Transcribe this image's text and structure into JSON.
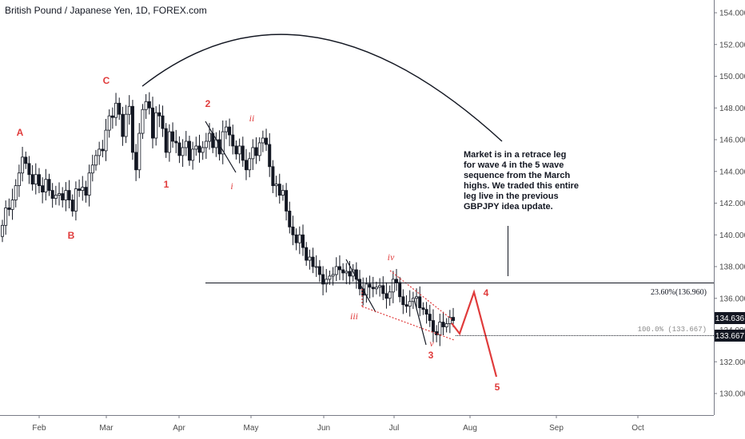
{
  "header": {
    "title": "British Pound / Japanese Yen, 1D, FOREX.com"
  },
  "colors": {
    "candles": "#131722",
    "wave": "#e03b3b",
    "grid": "#f0f3fa",
    "axis": "#787b86",
    "price_tag": "#131722"
  },
  "chart_data": {
    "type": "candlestick",
    "y_axis": {
      "ticks": [
        "154.000",
        "152.000",
        "150.000",
        "148.000",
        "146.000",
        "144.000",
        "142.000",
        "140.000",
        "138.000",
        "136.000",
        "134.000",
        "132.000",
        "130.000"
      ],
      "ylim": [
        128.5,
        154.8
      ]
    },
    "x_axis": {
      "ticks": [
        "Feb",
        "Mar",
        "Apr",
        "May",
        "Jun",
        "Jul",
        "Aug",
        "Sep",
        "Oct"
      ]
    },
    "price_tags": {
      "current": "134.636",
      "level": "133.667"
    },
    "fib_levels": [
      {
        "label": "23.60%(136.960)",
        "value": 136.96
      },
      {
        "label": "100.0% (133.667)",
        "value": 133.667
      }
    ],
    "wave_labels_major": [
      "A",
      "B",
      "C",
      "1",
      "2",
      "3",
      "4",
      "5"
    ],
    "wave_labels_minor": [
      "i",
      "ii",
      "iii",
      "iv",
      "v"
    ],
    "annotation": [
      "Market is in a retrace leg",
      "for wave 4 in the 5 wave",
      "sequence from the March",
      "highs. We traded this entire",
      "leg live in the previous",
      "GBPJPY idea update."
    ],
    "closes": [
      140.6,
      141.7,
      141.6,
      142.2,
      143.1,
      143.9,
      144.9,
      144.5,
      143.8,
      143.2,
      143.8,
      143.1,
      142.7,
      143.5,
      142.8,
      142.3,
      142.5,
      142.6,
      142.2,
      142.8,
      142.2,
      141.5,
      142.9,
      142.8,
      143.0,
      142.5,
      143.9,
      144.4,
      145.0,
      145.4,
      145.3,
      146.6,
      147.5,
      147.4,
      148.3,
      147.6,
      146.2,
      147.6,
      148.1,
      145.2,
      144.1,
      146.4,
      147.9,
      148.4,
      148.0,
      146.1,
      147.7,
      147.5,
      146.7,
      145.2,
      146.5,
      145.9,
      145.8,
      145.0,
      145.5,
      145.9,
      144.7,
      145.4,
      145.6,
      145.2,
      145.5,
      145.9,
      146.4,
      145.5,
      146.0,
      145.1,
      146.5,
      146.8,
      146.3,
      145.6,
      145.1,
      145.6,
      144.7,
      144.1,
      144.8,
      145.5,
      145.0,
      145.8,
      146.1,
      145.7,
      144.3,
      143.1,
      143.2,
      142.5,
      142.8,
      141.5,
      140.5,
      140.0,
      139.5,
      140.0,
      139.2,
      138.4,
      138.6,
      138.0,
      138.0,
      137.5,
      136.9,
      137.2,
      137.4,
      137.5,
      138.0,
      137.8,
      137.6,
      137.7,
      137.4,
      137.8,
      137.2,
      136.6,
      136.2,
      136.9,
      136.7,
      136.6,
      136.7,
      136.8,
      136.3,
      136.0,
      136.4,
      137.2,
      137.0,
      136.1,
      135.6,
      135.5,
      135.8,
      136.0,
      136.1,
      135.4,
      135.3,
      135.0,
      134.6,
      133.9,
      133.7,
      134.5,
      134.2,
      134.4,
      134.8,
      134.6
    ]
  }
}
